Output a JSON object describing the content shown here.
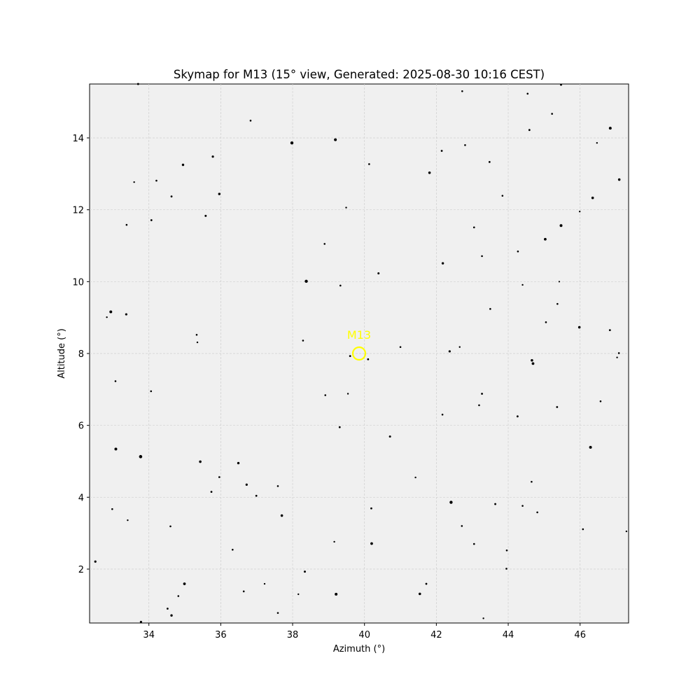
{
  "chart_data": {
    "type": "scatter",
    "title": "Skymap for M13 (15° view, Generated: 2025-08-30 10:16 CEST)",
    "xlabel": "Azimuth (°)",
    "ylabel": "Altitude (°)",
    "xlim": [
      32.35,
      47.35
    ],
    "ylim": [
      0.5,
      15.5
    ],
    "xticks": [
      34,
      36,
      38,
      40,
      42,
      44,
      46
    ],
    "yticks": [
      2,
      4,
      6,
      8,
      10,
      12,
      14
    ],
    "grid": true,
    "background": "#f0f0f0",
    "target": {
      "name": "M13",
      "x": 39.85,
      "y": 8.0,
      "color": "#ffff00"
    },
    "stars": [
      {
        "x": 33.7,
        "y": 15.5,
        "s": 1.5
      },
      {
        "x": 42.72,
        "y": 15.3,
        "s": 1.3
      },
      {
        "x": 44.54,
        "y": 15.23,
        "s": 1.3
      },
      {
        "x": 45.47,
        "y": 15.48,
        "s": 1.5
      },
      {
        "x": 36.83,
        "y": 14.48,
        "s": 1.3
      },
      {
        "x": 45.22,
        "y": 14.67,
        "s": 1.3
      },
      {
        "x": 44.59,
        "y": 14.22,
        "s": 1.4
      },
      {
        "x": 46.84,
        "y": 14.27,
        "s": 2.0
      },
      {
        "x": 37.98,
        "y": 13.86,
        "s": 2.2
      },
      {
        "x": 39.19,
        "y": 13.95,
        "s": 2.0
      },
      {
        "x": 42.8,
        "y": 13.8,
        "s": 1.3
      },
      {
        "x": 46.47,
        "y": 13.86,
        "s": 1.2
      },
      {
        "x": 35.78,
        "y": 13.48,
        "s": 1.6
      },
      {
        "x": 42.15,
        "y": 13.64,
        "s": 1.4
      },
      {
        "x": 34.95,
        "y": 13.25,
        "s": 1.7
      },
      {
        "x": 40.13,
        "y": 13.27,
        "s": 1.3
      },
      {
        "x": 43.48,
        "y": 13.33,
        "s": 1.4
      },
      {
        "x": 41.81,
        "y": 13.03,
        "s": 1.8
      },
      {
        "x": 47.09,
        "y": 12.84,
        "s": 1.8
      },
      {
        "x": 33.59,
        "y": 12.77,
        "s": 1.2
      },
      {
        "x": 34.21,
        "y": 12.81,
        "s": 1.3
      },
      {
        "x": 35.96,
        "y": 12.44,
        "s": 1.7
      },
      {
        "x": 34.63,
        "y": 12.37,
        "s": 1.4
      },
      {
        "x": 43.84,
        "y": 12.39,
        "s": 1.3
      },
      {
        "x": 46.35,
        "y": 12.33,
        "s": 1.8
      },
      {
        "x": 39.49,
        "y": 12.06,
        "s": 1.2
      },
      {
        "x": 45.99,
        "y": 11.95,
        "s": 1.2
      },
      {
        "x": 35.58,
        "y": 11.83,
        "s": 1.5
      },
      {
        "x": 34.07,
        "y": 11.71,
        "s": 1.4
      },
      {
        "x": 33.38,
        "y": 11.58,
        "s": 1.3
      },
      {
        "x": 43.05,
        "y": 11.51,
        "s": 1.3
      },
      {
        "x": 45.47,
        "y": 11.56,
        "s": 2.0
      },
      {
        "x": 45.03,
        "y": 11.18,
        "s": 1.9
      },
      {
        "x": 38.89,
        "y": 11.05,
        "s": 1.3
      },
      {
        "x": 44.27,
        "y": 10.84,
        "s": 1.3
      },
      {
        "x": 43.27,
        "y": 10.71,
        "s": 1.3
      },
      {
        "x": 42.18,
        "y": 10.51,
        "s": 1.7
      },
      {
        "x": 40.39,
        "y": 10.23,
        "s": 1.5
      },
      {
        "x": 38.38,
        "y": 10.01,
        "s": 2.2
      },
      {
        "x": 45.42,
        "y": 10.0,
        "s": 1.1
      },
      {
        "x": 44.4,
        "y": 9.91,
        "s": 1.2
      },
      {
        "x": 39.33,
        "y": 9.89,
        "s": 1.3
      },
      {
        "x": 45.37,
        "y": 9.38,
        "s": 1.3
      },
      {
        "x": 43.5,
        "y": 9.24,
        "s": 1.3
      },
      {
        "x": 32.94,
        "y": 9.16,
        "s": 2.0
      },
      {
        "x": 33.37,
        "y": 9.09,
        "s": 1.6
      },
      {
        "x": 32.83,
        "y": 9.01,
        "s": 1.2
      },
      {
        "x": 45.05,
        "y": 8.87,
        "s": 1.3
      },
      {
        "x": 45.98,
        "y": 8.73,
        "s": 1.8
      },
      {
        "x": 46.83,
        "y": 8.65,
        "s": 1.4
      },
      {
        "x": 35.33,
        "y": 8.52,
        "s": 1.3
      },
      {
        "x": 38.29,
        "y": 8.36,
        "s": 1.3
      },
      {
        "x": 35.35,
        "y": 8.31,
        "s": 1.2
      },
      {
        "x": 41.0,
        "y": 8.18,
        "s": 1.3
      },
      {
        "x": 42.65,
        "y": 8.18,
        "s": 1.2
      },
      {
        "x": 42.37,
        "y": 8.06,
        "s": 1.6
      },
      {
        "x": 47.08,
        "y": 8.01,
        "s": 1.3
      },
      {
        "x": 39.6,
        "y": 7.93,
        "s": 1.4
      },
      {
        "x": 40.1,
        "y": 7.84,
        "s": 1.4
      },
      {
        "x": 44.66,
        "y": 7.81,
        "s": 1.8
      },
      {
        "x": 47.03,
        "y": 7.89,
        "s": 1.2
      },
      {
        "x": 44.69,
        "y": 7.72,
        "s": 1.9
      },
      {
        "x": 33.07,
        "y": 7.23,
        "s": 1.3
      },
      {
        "x": 34.06,
        "y": 6.95,
        "s": 1.3
      },
      {
        "x": 38.91,
        "y": 6.84,
        "s": 1.3
      },
      {
        "x": 39.54,
        "y": 6.88,
        "s": 1.2
      },
      {
        "x": 43.27,
        "y": 6.88,
        "s": 1.4
      },
      {
        "x": 46.57,
        "y": 6.67,
        "s": 1.3
      },
      {
        "x": 43.19,
        "y": 6.56,
        "s": 1.3
      },
      {
        "x": 45.36,
        "y": 6.51,
        "s": 1.4
      },
      {
        "x": 42.17,
        "y": 6.3,
        "s": 1.3
      },
      {
        "x": 44.26,
        "y": 6.25,
        "s": 1.4
      },
      {
        "x": 39.31,
        "y": 5.95,
        "s": 1.4
      },
      {
        "x": 40.71,
        "y": 5.69,
        "s": 1.5
      },
      {
        "x": 46.29,
        "y": 5.39,
        "s": 2.0
      },
      {
        "x": 33.08,
        "y": 5.34,
        "s": 2.0
      },
      {
        "x": 33.77,
        "y": 5.13,
        "s": 2.3
      },
      {
        "x": 35.43,
        "y": 4.99,
        "s": 1.8
      },
      {
        "x": 36.49,
        "y": 4.95,
        "s": 1.7
      },
      {
        "x": 35.96,
        "y": 4.56,
        "s": 1.3
      },
      {
        "x": 41.42,
        "y": 4.55,
        "s": 1.2
      },
      {
        "x": 44.65,
        "y": 4.43,
        "s": 1.3
      },
      {
        "x": 36.72,
        "y": 4.35,
        "s": 1.6
      },
      {
        "x": 37.59,
        "y": 4.31,
        "s": 1.3
      },
      {
        "x": 35.74,
        "y": 4.15,
        "s": 1.4
      },
      {
        "x": 36.99,
        "y": 4.04,
        "s": 1.4
      },
      {
        "x": 42.41,
        "y": 3.86,
        "s": 2.2
      },
      {
        "x": 43.64,
        "y": 3.81,
        "s": 1.4
      },
      {
        "x": 44.4,
        "y": 3.76,
        "s": 1.3
      },
      {
        "x": 40.19,
        "y": 3.69,
        "s": 1.4
      },
      {
        "x": 32.98,
        "y": 3.67,
        "s": 1.3
      },
      {
        "x": 44.81,
        "y": 3.58,
        "s": 1.3
      },
      {
        "x": 37.7,
        "y": 3.49,
        "s": 1.8
      },
      {
        "x": 33.41,
        "y": 3.36,
        "s": 1.2
      },
      {
        "x": 34.6,
        "y": 3.19,
        "s": 1.3
      },
      {
        "x": 42.71,
        "y": 3.2,
        "s": 1.3
      },
      {
        "x": 46.08,
        "y": 3.11,
        "s": 1.3
      },
      {
        "x": 47.29,
        "y": 3.05,
        "s": 1.2
      },
      {
        "x": 39.16,
        "y": 2.76,
        "s": 1.2
      },
      {
        "x": 40.2,
        "y": 2.71,
        "s": 1.9
      },
      {
        "x": 43.05,
        "y": 2.7,
        "s": 1.3
      },
      {
        "x": 36.33,
        "y": 2.54,
        "s": 1.3
      },
      {
        "x": 43.96,
        "y": 2.52,
        "s": 1.3
      },
      {
        "x": 32.51,
        "y": 2.21,
        "s": 1.6
      },
      {
        "x": 43.95,
        "y": 2.01,
        "s": 1.3
      },
      {
        "x": 38.34,
        "y": 1.93,
        "s": 1.5
      },
      {
        "x": 34.99,
        "y": 1.59,
        "s": 1.9
      },
      {
        "x": 37.22,
        "y": 1.59,
        "s": 1.2
      },
      {
        "x": 41.72,
        "y": 1.59,
        "s": 1.4
      },
      {
        "x": 36.64,
        "y": 1.38,
        "s": 1.3
      },
      {
        "x": 41.54,
        "y": 1.31,
        "s": 1.8
      },
      {
        "x": 38.16,
        "y": 1.3,
        "s": 1.2
      },
      {
        "x": 39.21,
        "y": 1.3,
        "s": 2.0
      },
      {
        "x": 34.82,
        "y": 1.25,
        "s": 1.3
      },
      {
        "x": 34.52,
        "y": 0.9,
        "s": 1.4
      },
      {
        "x": 37.59,
        "y": 0.78,
        "s": 1.3
      },
      {
        "x": 34.63,
        "y": 0.71,
        "s": 1.7
      },
      {
        "x": 43.31,
        "y": 0.63,
        "s": 1.2
      },
      {
        "x": 33.78,
        "y": 0.53,
        "s": 1.6
      }
    ]
  }
}
